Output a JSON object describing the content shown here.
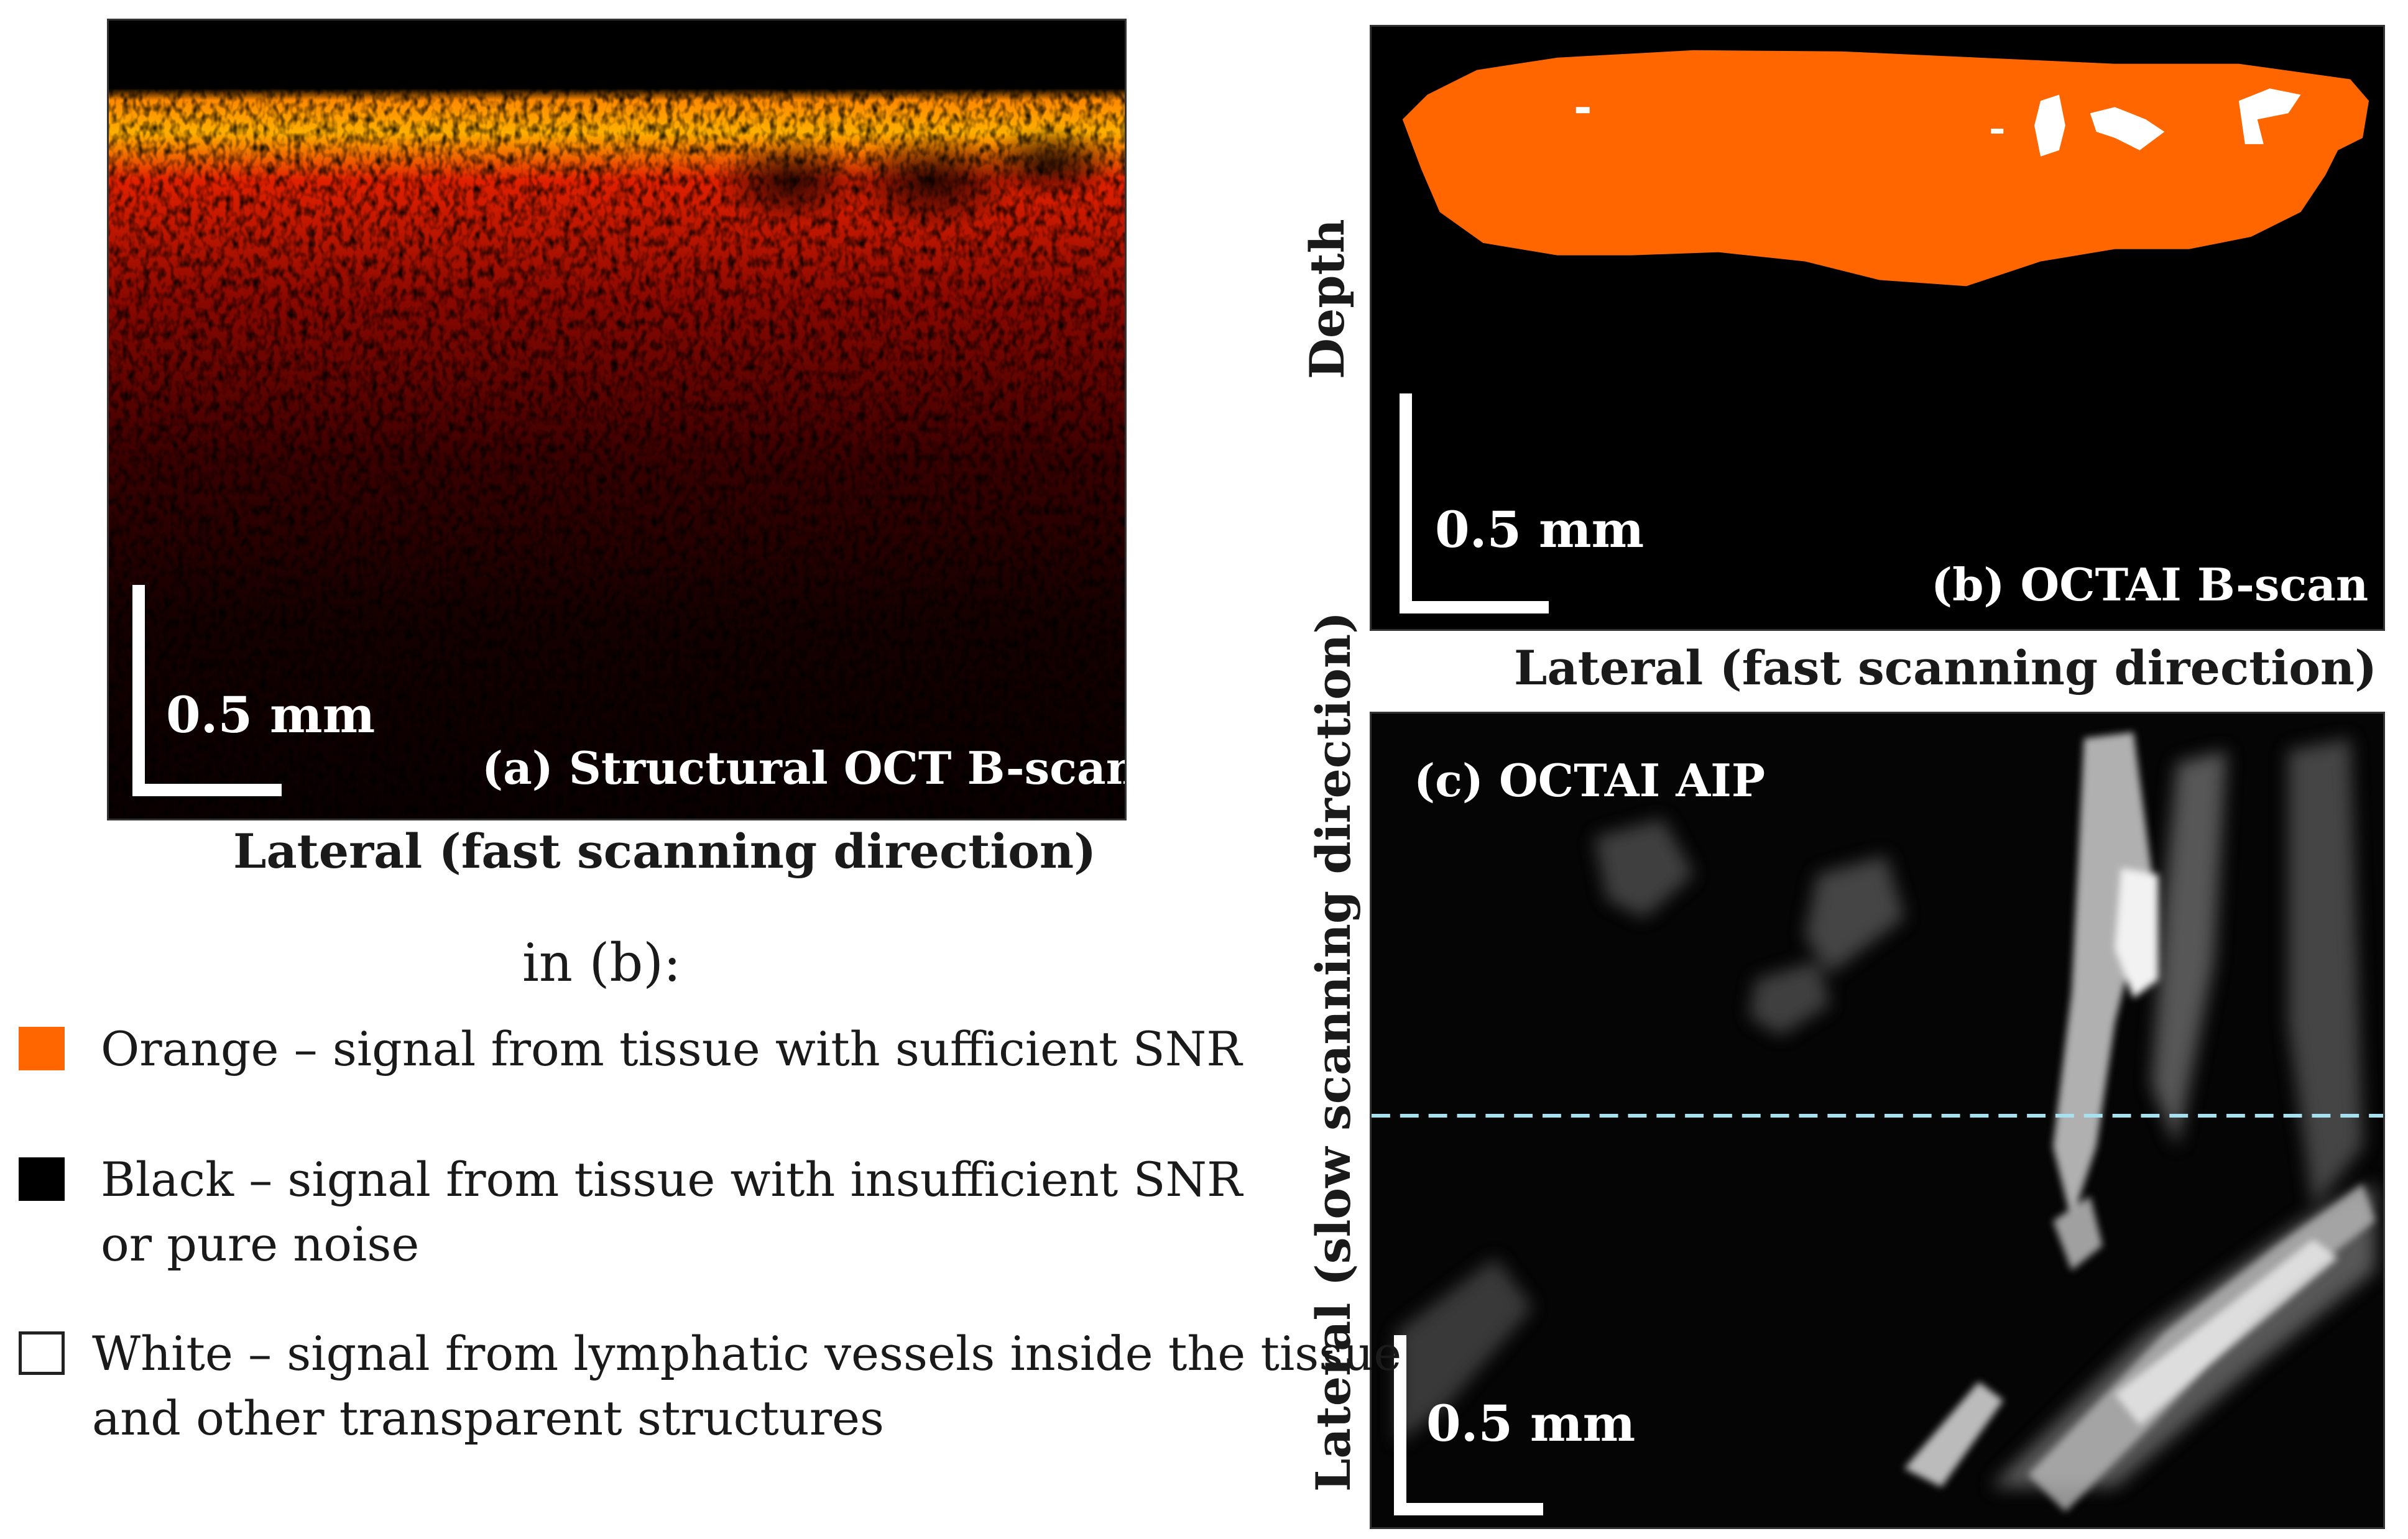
{
  "panel_a": {
    "caption": "(a) Structural OCT B-scan",
    "scale_label": "0.5 mm",
    "x_label": "Lateral (fast scanning direction)"
  },
  "panel_b": {
    "caption": "(b) OCTAI B-scan",
    "scale_label": "0.5 mm",
    "x_label": "Lateral (fast scanning direction)",
    "y_label": "Depth"
  },
  "panel_c": {
    "caption": "(c) OCTAI AIP",
    "scale_label": "0.5 mm",
    "y_label": "Lateral (slow scanning direction)"
  },
  "legend": {
    "title": "in (b):",
    "items": [
      {
        "color": "#ff6600",
        "line1": "Orange – signal from tissue with sufficient SNR",
        "line2": ""
      },
      {
        "color": "#000000",
        "line1": "Black – signal from tissue with insufficient SNR",
        "line2": "or pure noise"
      },
      {
        "color": "#ffffff",
        "line1": "White – signal from lymphatic vessels inside the tissue",
        "line2": "and other transparent structures"
      }
    ]
  },
  "colors": {
    "tissue_orange": "#ff6600",
    "dashed_line": "#a8e0f0"
  }
}
